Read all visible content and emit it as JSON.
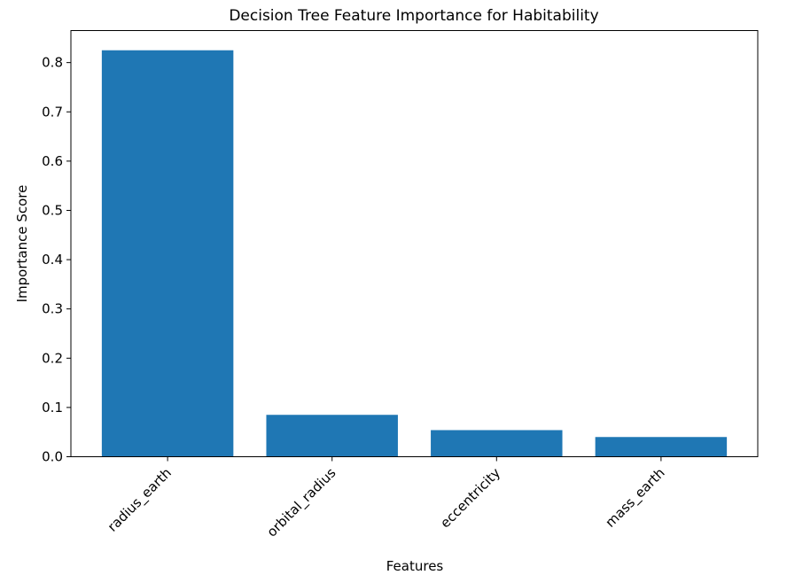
{
  "chart_data": {
    "type": "bar",
    "title": "Decision Tree Feature Importance for Habitability",
    "xlabel": "Features",
    "ylabel": "Importance Score",
    "categories": [
      "radius_earth",
      "orbital_radius",
      "eccentricity",
      "mass_earth"
    ],
    "values": [
      0.825,
      0.085,
      0.054,
      0.04
    ],
    "ylim": [
      0,
      0.865
    ],
    "yticks": [
      0.0,
      0.1,
      0.2,
      0.3,
      0.4,
      0.5,
      0.6,
      0.7,
      0.8
    ],
    "ytick_labels": [
      "0.0",
      "0.1",
      "0.2",
      "0.3",
      "0.4",
      "0.5",
      "0.6",
      "0.7",
      "0.8"
    ],
    "bar_color": "#1f77b4",
    "grid": false,
    "legend": "none",
    "xtick_rotation_deg": 45
  }
}
